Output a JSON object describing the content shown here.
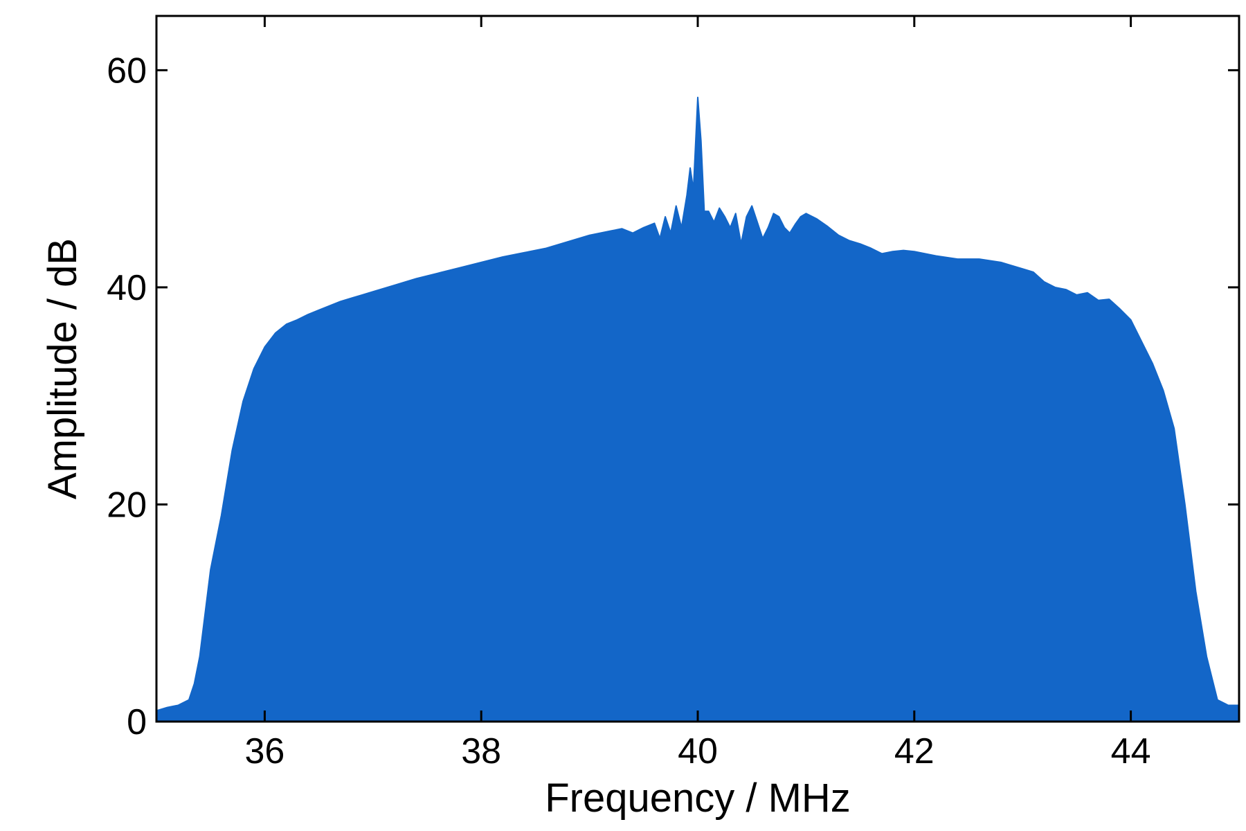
{
  "chart_data": {
    "type": "area",
    "title": "",
    "xlabel": "Frequency / MHz",
    "ylabel": "Amplitude / dB",
    "xlim": [
      35,
      45
    ],
    "ylim": [
      0,
      65
    ],
    "xticks": [
      36,
      38,
      40,
      42,
      44
    ],
    "yticks": [
      0,
      20,
      40,
      60
    ],
    "grid": false,
    "legend": "none",
    "fill_color": "#1366c8",
    "axis_color": "#000000",
    "series": [
      {
        "x": [
          35.0,
          35.1,
          35.2,
          35.3,
          35.35,
          35.4,
          35.45,
          35.5,
          35.6,
          35.7,
          35.8,
          35.9,
          36.0,
          36.1,
          36.2,
          36.3,
          36.4,
          36.5,
          36.6,
          36.7,
          36.8,
          36.9,
          37.0,
          37.2,
          37.4,
          37.6,
          37.8,
          38.0,
          38.2,
          38.4,
          38.6,
          38.8,
          39.0,
          39.2,
          39.3,
          39.4,
          39.5,
          39.6,
          39.65,
          39.7,
          39.75,
          39.8,
          39.85,
          39.9,
          39.93,
          39.96,
          40.0,
          40.03,
          40.06,
          40.1,
          40.15,
          40.2,
          40.25,
          40.3,
          40.35,
          40.4,
          40.45,
          40.5,
          40.55,
          40.6,
          40.65,
          40.7,
          40.75,
          40.8,
          40.85,
          40.9,
          40.95,
          41.0,
          41.1,
          41.2,
          41.3,
          41.4,
          41.5,
          41.6,
          41.7,
          41.8,
          41.9,
          42.0,
          42.2,
          42.4,
          42.6,
          42.8,
          43.0,
          43.1,
          43.2,
          43.3,
          43.4,
          43.5,
          43.6,
          43.7,
          43.8,
          43.9,
          44.0,
          44.1,
          44.2,
          44.3,
          44.4,
          44.5,
          44.6,
          44.7,
          44.8,
          44.9,
          45.0
        ],
        "values": [
          1.0,
          1.3,
          1.5,
          2.0,
          3.5,
          6.0,
          10.0,
          14.0,
          19.0,
          25.0,
          29.5,
          32.5,
          34.5,
          35.8,
          36.6,
          37.0,
          37.5,
          37.9,
          38.3,
          38.7,
          39.0,
          39.3,
          39.6,
          40.2,
          40.8,
          41.3,
          41.8,
          42.3,
          42.8,
          43.2,
          43.6,
          44.2,
          44.8,
          45.2,
          45.4,
          45.0,
          45.5,
          45.9,
          44.5,
          46.5,
          45.0,
          47.5,
          45.5,
          48.5,
          51.0,
          49.0,
          57.5,
          53.5,
          47.0,
          47.0,
          46.0,
          47.3,
          46.5,
          45.5,
          46.8,
          44.0,
          46.5,
          47.5,
          46.0,
          44.5,
          45.5,
          46.8,
          46.5,
          45.5,
          45.0,
          45.8,
          46.5,
          46.8,
          46.3,
          45.6,
          44.8,
          44.3,
          44.0,
          43.6,
          43.1,
          43.3,
          43.4,
          43.3,
          42.9,
          42.6,
          42.6,
          42.3,
          41.7,
          41.4,
          40.5,
          40.0,
          39.8,
          39.3,
          39.5,
          38.8,
          38.9,
          38.0,
          37.0,
          35.0,
          33.0,
          30.5,
          27.0,
          20.0,
          12.0,
          6.0,
          2.0,
          1.5,
          1.5
        ]
      }
    ]
  }
}
